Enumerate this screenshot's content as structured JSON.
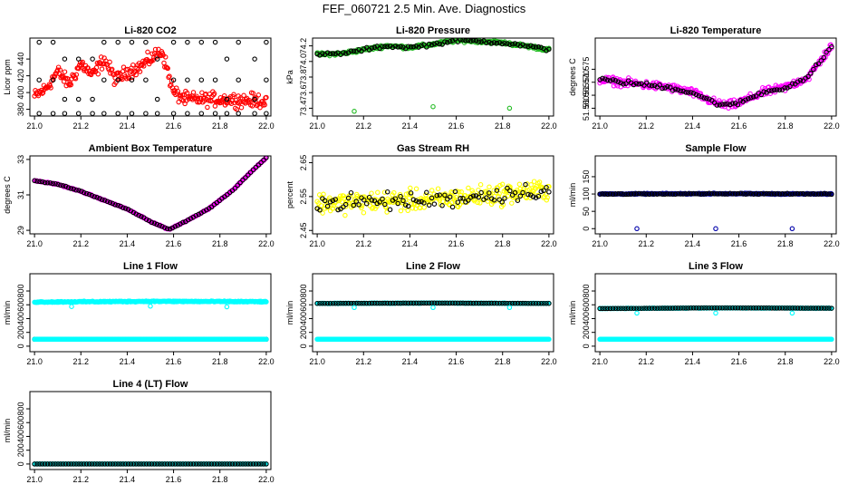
{
  "page": {
    "title": "FEF_060721  2.5 Min. Ave. Diagnostics"
  },
  "colors": {
    "frame": "#000000",
    "black_points": "#000000",
    "red": "#ff0000",
    "green": "#22bb22",
    "magenta": "#ff00ff",
    "yellow": "#ffff00",
    "cyan": "#00ffff",
    "navy": "#0000aa"
  },
  "chart_data": [
    {
      "id": "co2",
      "type": "scatter",
      "title": "Li-820 CO2",
      "xlabel": "",
      "ylabel": "Licor ppm",
      "xlim": [
        20.98,
        22.02
      ],
      "ylim": [
        372,
        465
      ],
      "xticks": [
        "21.0",
        "21.2",
        "21.4",
        "21.6",
        "21.8",
        "22.0"
      ],
      "yticks": [
        "380",
        "400",
        "420",
        "440"
      ],
      "series": [
        {
          "name": "co2-avg",
          "color": "#ff0000",
          "mode": "noisy",
          "points": [
            [
              21.0,
              395
            ],
            [
              21.05,
              405
            ],
            [
              21.1,
              425
            ],
            [
              21.15,
              410
            ],
            [
              21.2,
              435
            ],
            [
              21.25,
              420
            ],
            [
              21.3,
              440
            ],
            [
              21.35,
              415
            ],
            [
              21.4,
              425
            ],
            [
              21.45,
              430
            ],
            [
              21.5,
              440
            ],
            [
              21.55,
              450
            ],
            [
              21.6,
              400
            ],
            [
              21.65,
              392
            ],
            [
              21.8,
              392
            ],
            [
              22.0,
              390
            ]
          ],
          "noise": 8
        },
        {
          "name": "co2-raw",
          "color": "#000000",
          "mode": "discrete",
          "xs": [
            21.02,
            21.08,
            21.13,
            21.19,
            21.25,
            21.3,
            21.36,
            21.42,
            21.48,
            21.53,
            21.6,
            21.66,
            21.72,
            21.78,
            21.83,
            21.88,
            21.95,
            22.0
          ],
          "levels": [
            375,
            392,
            415,
            440,
            460
          ]
        }
      ]
    },
    {
      "id": "pressure",
      "type": "scatter",
      "title": "Li-820 Pressure",
      "xlabel": "",
      "ylabel": "kPa",
      "xlim": [
        20.98,
        22.02
      ],
      "ylim": [
        73.3,
        74.3
      ],
      "xticks": [
        "21.0",
        "21.2",
        "21.4",
        "21.6",
        "21.8",
        "22.0"
      ],
      "yticks": [
        "73.4",
        "73.6",
        "73.8",
        "74.0",
        "74.2"
      ],
      "series": [
        {
          "name": "pressure-avg",
          "color": "#22bb22",
          "mode": "noisy",
          "points": [
            [
              21.0,
              74.09
            ],
            [
              21.1,
              74.1
            ],
            [
              21.2,
              74.15
            ],
            [
              21.3,
              74.2
            ],
            [
              21.4,
              74.18
            ],
            [
              21.5,
              74.22
            ],
            [
              21.6,
              74.27
            ],
            [
              21.7,
              74.26
            ],
            [
              21.8,
              74.24
            ],
            [
              21.9,
              74.2
            ],
            [
              22.0,
              74.15
            ]
          ],
          "noise": 0.02
        },
        {
          "name": "pressure-raw",
          "color": "#000000",
          "mode": "sparse-follow",
          "ref": 0,
          "noise": 0.02
        },
        {
          "name": "pressure-outliers",
          "color": "#22bb22",
          "mode": "fixed",
          "points": [
            [
              21.16,
              73.36
            ],
            [
              21.5,
              73.42
            ],
            [
              21.83,
              73.4
            ]
          ]
        }
      ]
    },
    {
      "id": "licor-temp",
      "type": "scatter",
      "title": "Li-820 Temperature",
      "xlabel": "",
      "ylabel": "degrees C",
      "xlim": [
        20.98,
        22.02
      ],
      "ylim": [
        51.557,
        51.587
      ],
      "xticks": [
        "21.0",
        "21.2",
        "21.4",
        "21.6",
        "21.8",
        "22.0"
      ],
      "yticks": [
        "51.560",
        "51.565",
        "51.570",
        "51.575"
      ],
      "series": [
        {
          "name": "licor-temp-avg",
          "color": "#ff00ff",
          "mode": "noisy",
          "points": [
            [
              21.0,
              51.571
            ],
            [
              21.1,
              51.57
            ],
            [
              21.2,
              51.569
            ],
            [
              21.3,
              51.568
            ],
            [
              21.4,
              51.566
            ],
            [
              21.5,
              51.562
            ],
            [
              21.55,
              51.561
            ],
            [
              21.6,
              51.562
            ],
            [
              21.7,
              51.566
            ],
            [
              21.8,
              51.568
            ],
            [
              21.9,
              51.572
            ],
            [
              22.0,
              51.584
            ]
          ],
          "noise": 0.0015
        },
        {
          "name": "licor-temp-raw",
          "color": "#000000",
          "mode": "sparse-follow",
          "ref": 0,
          "noise": 0.0008
        }
      ]
    },
    {
      "id": "box-temp",
      "type": "scatter",
      "title": "Ambient Box Temperature",
      "xlabel": "",
      "ylabel": "degrees C",
      "xlim": [
        20.98,
        22.02
      ],
      "ylim": [
        28.8,
        33.2
      ],
      "xticks": [
        "21.0",
        "21.2",
        "21.4",
        "21.6",
        "21.8",
        "22.0"
      ],
      "yticks": [
        "29",
        "31",
        "33"
      ],
      "series": [
        {
          "name": "box-temp-avg",
          "color": "#ff00ff",
          "mode": "noisy",
          "points": [
            [
              21.0,
              31.8
            ],
            [
              21.1,
              31.6
            ],
            [
              21.2,
              31.2
            ],
            [
              21.3,
              30.7
            ],
            [
              21.4,
              30.2
            ],
            [
              21.5,
              29.5
            ],
            [
              21.58,
              29.05
            ],
            [
              21.65,
              29.5
            ],
            [
              21.75,
              30.2
            ],
            [
              21.85,
              31.2
            ],
            [
              21.95,
              32.5
            ],
            [
              22.0,
              33.1
            ]
          ],
          "noise": 0.03
        },
        {
          "name": "box-temp-raw",
          "color": "#000000",
          "mode": "sparse-follow",
          "ref": 0,
          "noise": 0.02
        }
      ]
    },
    {
      "id": "rh",
      "type": "scatter",
      "title": "Gas Stream RH",
      "xlabel": "",
      "ylabel": "percent",
      "xlim": [
        20.98,
        22.02
      ],
      "ylim": [
        2.44,
        2.67
      ],
      "xticks": [
        "21.0",
        "21.2",
        "21.4",
        "21.6",
        "21.8",
        "22.0"
      ],
      "yticks": [
        "2.45",
        "2.55",
        "2.65"
      ],
      "series": [
        {
          "name": "rh-avg",
          "color": "#ffff00",
          "mode": "noisy",
          "points": [
            [
              21.0,
              2.53
            ],
            [
              21.5,
              2.54
            ],
            [
              22.0,
              2.57
            ]
          ],
          "noise": 0.03
        },
        {
          "name": "rh-raw",
          "color": "#000000",
          "mode": "sparse-follow",
          "ref": 0,
          "noise": 0.025
        }
      ]
    },
    {
      "id": "sample-flow",
      "type": "scatter",
      "title": "Sample Flow",
      "xlabel": "",
      "ylabel": "ml/min",
      "xlim": [
        20.98,
        22.02
      ],
      "ylim": [
        -15,
        210
      ],
      "xticks": [
        "21.0",
        "21.2",
        "21.4",
        "21.6",
        "21.8",
        "22.0"
      ],
      "yticks": [
        "0",
        "50",
        "100",
        "150"
      ],
      "series": [
        {
          "name": "sample-flow-avg",
          "color": "#0000aa",
          "mode": "noisy",
          "points": [
            [
              21.0,
              100
            ],
            [
              21.5,
              101
            ],
            [
              22.0,
              100
            ]
          ],
          "noise": 1.5
        },
        {
          "name": "sample-flow-raw",
          "color": "#000000",
          "mode": "sparse-follow",
          "ref": 0,
          "noise": 1.2
        },
        {
          "name": "sample-flow-outliers",
          "color": "#0000aa",
          "mode": "fixed",
          "points": [
            [
              21.16,
              0
            ],
            [
              21.5,
              0
            ],
            [
              21.83,
              0
            ]
          ]
        }
      ]
    },
    {
      "id": "line1",
      "type": "scatter",
      "title": "Line 1 Flow",
      "xlabel": "",
      "ylabel": "ml/min",
      "xlim": [
        20.98,
        22.02
      ],
      "ylim": [
        -80,
        1050
      ],
      "xticks": [
        "21.0",
        "21.2",
        "21.4",
        "21.6",
        "21.8",
        "22.0"
      ],
      "yticks": [
        "0",
        "200",
        "400",
        "600",
        "800"
      ],
      "series": [
        {
          "name": "line1-high",
          "color": "#00ffff",
          "mode": "noisy",
          "points": [
            [
              21.0,
              640
            ],
            [
              21.5,
              650
            ],
            [
              22.0,
              645
            ]
          ],
          "noise": 8
        },
        {
          "name": "line1-high-outliers",
          "color": "#00ffff",
          "mode": "fixed",
          "points": [
            [
              21.16,
              575
            ],
            [
              21.5,
              580
            ],
            [
              21.83,
              570
            ]
          ]
        },
        {
          "name": "line1-low-black",
          "color": "#000000",
          "mode": "sparse-follow",
          "ref": 3,
          "noise": 0
        },
        {
          "name": "line1-low",
          "color": "#00ffff",
          "mode": "noisy",
          "points": [
            [
              21.0,
              100
            ],
            [
              22.0,
              100
            ]
          ],
          "noise": 0
        }
      ]
    },
    {
      "id": "line2",
      "type": "scatter",
      "title": "Line 2 Flow",
      "xlabel": "",
      "ylabel": "ml/min",
      "xlim": [
        20.98,
        22.02
      ],
      "ylim": [
        -80,
        1050
      ],
      "xticks": [
        "21.0",
        "21.2",
        "21.4",
        "21.6",
        "21.8",
        "22.0"
      ],
      "yticks": [
        "0",
        "200",
        "400",
        "600",
        "800"
      ],
      "series": [
        {
          "name": "line2-high",
          "color": "#00ffff",
          "mode": "noisy",
          "points": [
            [
              21.0,
              620
            ],
            [
              21.5,
              625
            ],
            [
              22.0,
              620
            ]
          ],
          "noise": 4
        },
        {
          "name": "line2-high-black",
          "color": "#000000",
          "mode": "sparse-follow",
          "ref": 0,
          "noise": 0
        },
        {
          "name": "line2-high-outliers",
          "color": "#00ffff",
          "mode": "fixed",
          "points": [
            [
              21.16,
              560
            ],
            [
              21.5,
              560
            ],
            [
              21.83,
              560
            ]
          ]
        },
        {
          "name": "line2-low",
          "color": "#00ffff",
          "mode": "noisy",
          "points": [
            [
              21.0,
              100
            ],
            [
              22.0,
              100
            ]
          ],
          "noise": 0
        }
      ]
    },
    {
      "id": "line3",
      "type": "scatter",
      "title": "Line 3 Flow",
      "xlabel": "",
      "ylabel": "ml/min",
      "xlim": [
        20.98,
        22.02
      ],
      "ylim": [
        -80,
        1050
      ],
      "xticks": [
        "21.0",
        "21.2",
        "21.4",
        "21.6",
        "21.8",
        "22.0"
      ],
      "yticks": [
        "0",
        "200",
        "400",
        "600",
        "800"
      ],
      "series": [
        {
          "name": "line3-high",
          "color": "#00ffff",
          "mode": "noisy",
          "points": [
            [
              21.0,
              545
            ],
            [
              21.5,
              555
            ],
            [
              22.0,
              550
            ]
          ],
          "noise": 4
        },
        {
          "name": "line3-high-black",
          "color": "#000000",
          "mode": "sparse-follow",
          "ref": 0,
          "noise": 0
        },
        {
          "name": "line3-high-outliers",
          "color": "#00ffff",
          "mode": "fixed",
          "points": [
            [
              21.16,
              480
            ],
            [
              21.5,
              480
            ],
            [
              21.83,
              480
            ]
          ]
        },
        {
          "name": "line3-low",
          "color": "#00ffff",
          "mode": "noisy",
          "points": [
            [
              21.0,
              100
            ],
            [
              22.0,
              100
            ]
          ],
          "noise": 0
        }
      ]
    },
    {
      "id": "line4",
      "type": "scatter",
      "title": "Line 4 (LT) Flow",
      "xlabel": "",
      "ylabel": "ml/min",
      "xlim": [
        20.98,
        22.02
      ],
      "ylim": [
        -80,
        1050
      ],
      "xticks": [
        "21.0",
        "21.2",
        "21.4",
        "21.6",
        "21.8",
        "22.0"
      ],
      "yticks": [
        "0",
        "200",
        "400",
        "600",
        "800"
      ],
      "series": [
        {
          "name": "line4-flow",
          "color": "#00ffff",
          "mode": "noisy",
          "points": [
            [
              21.0,
              0
            ],
            [
              22.0,
              0
            ]
          ],
          "noise": 0
        },
        {
          "name": "line4-flow-black",
          "color": "#000000",
          "mode": "sparse-follow",
          "ref": 0,
          "noise": 0
        }
      ]
    }
  ]
}
